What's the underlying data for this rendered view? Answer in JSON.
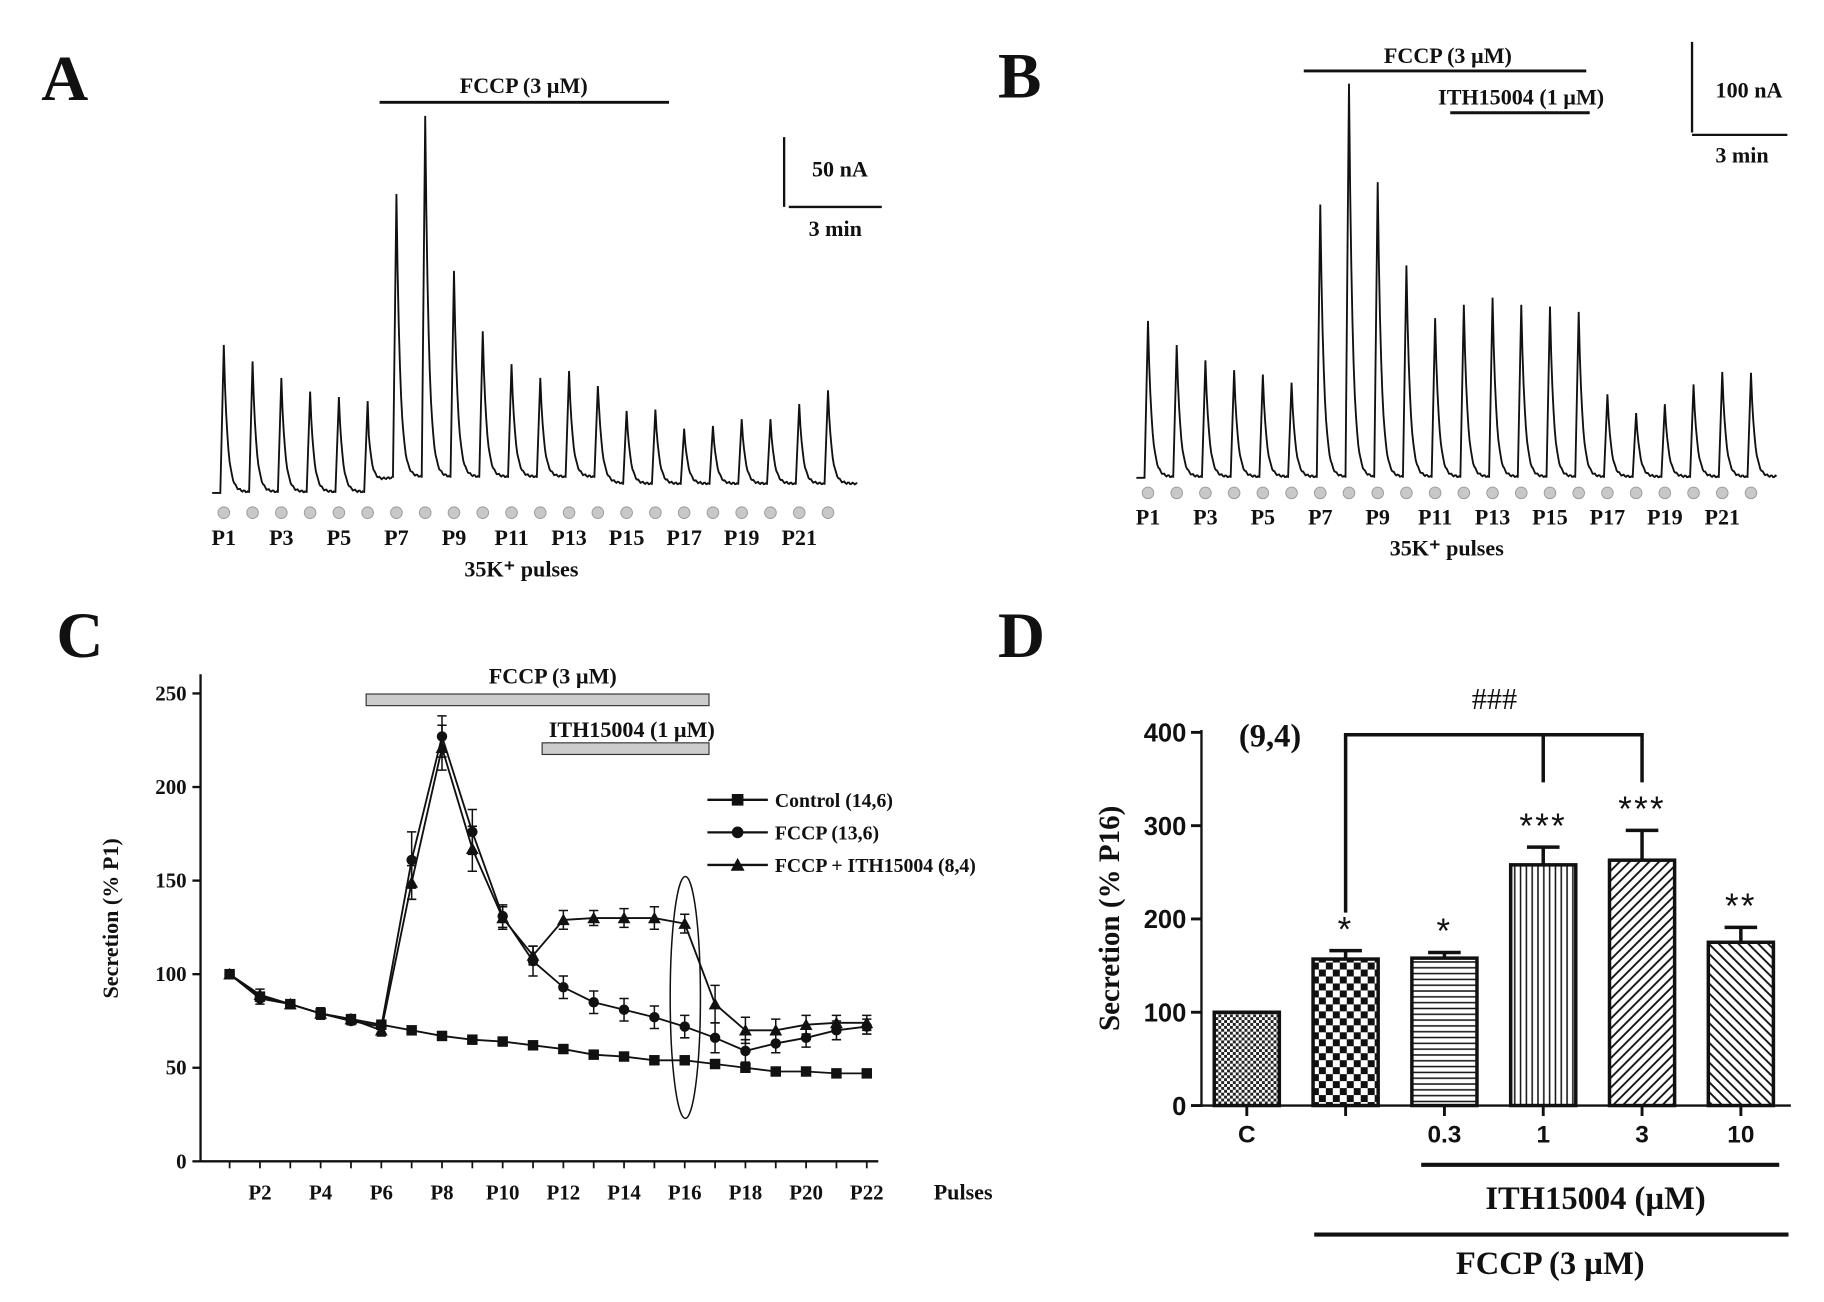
{
  "colors": {
    "ink": "#111111",
    "bar_gray": "#cccccc",
    "dot_gray": "#c8c8c8"
  },
  "chart_data": [
    {
      "panel": "A",
      "type": "line",
      "title": "",
      "treatment_bars": [
        {
          "label": "FCCP (3 µM)",
          "from_pulse": 7,
          "to_pulse": 16
        }
      ],
      "scale_bar": {
        "y_label": "50 nA",
        "x_label": "3 min"
      },
      "pulse_labels": [
        "P1",
        "P3",
        "P5",
        "P7",
        "P9",
        "P11",
        "P13",
        "P15",
        "P17",
        "P19",
        "P21"
      ],
      "xlabel": "35K⁺ pulses",
      "peak_amplitudes_nA": [
        107,
        95,
        83,
        73,
        69,
        66,
        206,
        263,
        150,
        106,
        82,
        72,
        77,
        66,
        53,
        54,
        40,
        42,
        47,
        47,
        58,
        68
      ]
    },
    {
      "panel": "B",
      "type": "line",
      "title": "",
      "treatment_bars": [
        {
          "label": "FCCP (3 µM)",
          "from_pulse": 7,
          "to_pulse": 16
        },
        {
          "label": "ITH15004 (1 µM)",
          "from_pulse": 12,
          "to_pulse": 16
        }
      ],
      "scale_bar": {
        "y_label": "100 nA",
        "x_label": "3 min"
      },
      "pulse_labels": [
        "P1",
        "P3",
        "P5",
        "P7",
        "P9",
        "P11",
        "P13",
        "P15",
        "P17",
        "P19",
        "P21"
      ],
      "xlabel": "35K⁺ pulses",
      "peak_amplitudes_nA": [
        174,
        147,
        130,
        119,
        114,
        105,
        304,
        439,
        329,
        236,
        177,
        192,
        200,
        192,
        190,
        184,
        92,
        71,
        81,
        103,
        117,
        116
      ]
    },
    {
      "panel": "C",
      "type": "line",
      "title": "",
      "xlabel": "Pulses",
      "ylabel": "Secretion (% P1)",
      "ylim": [
        0,
        260
      ],
      "y_ticks": [
        0,
        50,
        100,
        150,
        200,
        250
      ],
      "x": [
        "P1",
        "P2",
        "P3",
        "P4",
        "P5",
        "P6",
        "P7",
        "P8",
        "P9",
        "P10",
        "P11",
        "P12",
        "P13",
        "P14",
        "P15",
        "P16",
        "P17",
        "P18",
        "P19",
        "P20",
        "P21",
        "P22"
      ],
      "x_tick_labels": [
        "P2",
        "P4",
        "P6",
        "P8",
        "P10",
        "P12",
        "P14",
        "P16",
        "P18",
        "P20",
        "P22"
      ],
      "treatment_bars": [
        {
          "label": "FCCP (3 µM)",
          "from": 5.5,
          "to": 16.8
        },
        {
          "label": "ITH15004 (1 µM)",
          "from": 11.3,
          "to": 16.8
        }
      ],
      "highlight": "P16",
      "legend_position": "right",
      "series": [
        {
          "name": "Control (14,6)",
          "marker": "square",
          "values": [
            100,
            88,
            84,
            79,
            76,
            73,
            70,
            67,
            65,
            64,
            62,
            60,
            57,
            56,
            54,
            54,
            52,
            50,
            48,
            48,
            47,
            47
          ],
          "errors": [
            1,
            2,
            2,
            2,
            2,
            2,
            2,
            2,
            2,
            2,
            2,
            2,
            2,
            2,
            2,
            2,
            2,
            2,
            2,
            2,
            2,
            2
          ]
        },
        {
          "name": "FCCP (13,6)",
          "marker": "circle",
          "values": [
            100,
            87,
            84,
            79,
            75,
            72,
            161,
            227,
            176,
            131,
            107,
            93,
            85,
            81,
            77,
            72,
            66,
            59,
            63,
            66,
            70,
            72
          ],
          "errors": [
            1,
            3,
            2,
            3,
            2,
            3,
            15,
            11,
            12,
            6,
            8,
            6,
            6,
            6,
            6,
            6,
            8,
            6,
            5,
            5,
            5,
            4
          ]
        },
        {
          "name": "FCCP + ITH15004 (8,4)",
          "marker": "triangle",
          "values": [
            100,
            89,
            84,
            79,
            76,
            70,
            149,
            221,
            167,
            130,
            110,
            129,
            130,
            130,
            130,
            127,
            84,
            70,
            70,
            73,
            74,
            74
          ],
          "errors": [
            1,
            3,
            2,
            3,
            2,
            3,
            9,
            12,
            12,
            6,
            5,
            5,
            4,
            5,
            6,
            5,
            10,
            7,
            6,
            5,
            4,
            4
          ]
        }
      ]
    },
    {
      "panel": "D",
      "type": "bar",
      "title": "",
      "ylabel": "Secretion (% P16)",
      "ylim": [
        0,
        400
      ],
      "y_ticks": [
        0,
        100,
        200,
        300,
        400
      ],
      "categories": [
        "C",
        "",
        "0.3",
        "1",
        "3",
        "10"
      ],
      "values": [
        100,
        157,
        158,
        258,
        263,
        175
      ],
      "errors": [
        0,
        9,
        6,
        19,
        32,
        16
      ],
      "significance": [
        "",
        "*",
        "*",
        "***",
        "***",
        "**"
      ],
      "patterns": [
        "fine-grid",
        "checker",
        "horizontal",
        "vertical",
        "diagonal-up",
        "diagonal-down"
      ],
      "n_label": "(9,4)",
      "bracket_label": "###",
      "group_labels": {
        "ith": "ITH15004 (µM)",
        "fccp": "FCCP (3 µM)"
      }
    }
  ]
}
